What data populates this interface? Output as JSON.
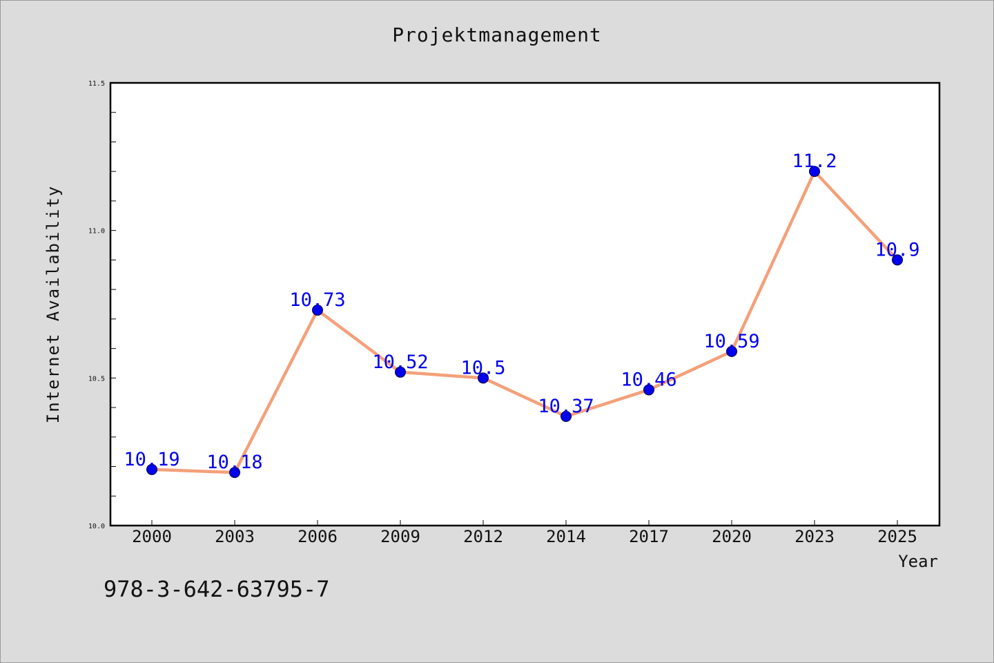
{
  "title": "Projektmanagement",
  "footnote": "978-3-642-63795-7",
  "chart_data": {
    "type": "line",
    "title": "Projektmanagement",
    "xlabel": "Year",
    "ylabel": "Internet Availability",
    "categories": [
      "2000",
      "2003",
      "2006",
      "2009",
      "2012",
      "2014",
      "2017",
      "2020",
      "2023",
      "2025"
    ],
    "series": [
      {
        "values": [
          10.19,
          10.18,
          10.73,
          10.52,
          10.5,
          10.37,
          10.46,
          10.59,
          11.2,
          10.9
        ],
        "labels": [
          "10.19",
          "10.18",
          "10.73",
          "10.52",
          "10.5",
          "10.37",
          "10.46",
          "10.59",
          "11.2",
          "10.9"
        ]
      }
    ],
    "ylim": [
      10.0,
      11.5
    ],
    "yticks": [
      "10.0",
      "10.5",
      "11.0",
      "11.5"
    ],
    "grid": false,
    "line_color": "#f4a07a",
    "marker_color": "#0000ee",
    "label_color": "#0000ee"
  }
}
